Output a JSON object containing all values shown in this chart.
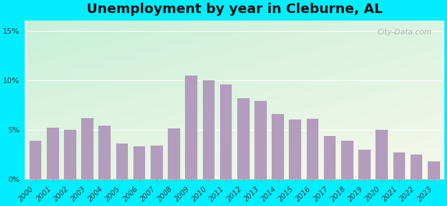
{
  "title": "Unemployment by year in Cleburne, AL",
  "years": [
    2000,
    2001,
    2002,
    2003,
    2004,
    2005,
    2006,
    2007,
    2008,
    2009,
    2010,
    2011,
    2012,
    2013,
    2014,
    2015,
    2016,
    2017,
    2018,
    2019,
    2020,
    2021,
    2022,
    2023
  ],
  "values": [
    3.9,
    5.2,
    5.0,
    6.2,
    5.4,
    3.6,
    3.3,
    3.4,
    5.1,
    10.5,
    10.0,
    9.6,
    8.2,
    7.9,
    6.6,
    6.0,
    6.1,
    4.4,
    3.9,
    3.0,
    5.0,
    2.7,
    2.5,
    1.8
  ],
  "bar_color": "#b39dbd",
  "yticks": [
    0,
    5,
    10,
    15
  ],
  "ylim": [
    0,
    16
  ],
  "background_outer": "#00eeff",
  "gradient_top_left": "#c8f0d8",
  "gradient_bottom_right": "#f5f5e8",
  "watermark": "City-Data.com",
  "title_fontsize": 14,
  "tick_label_fontsize": 7.5
}
